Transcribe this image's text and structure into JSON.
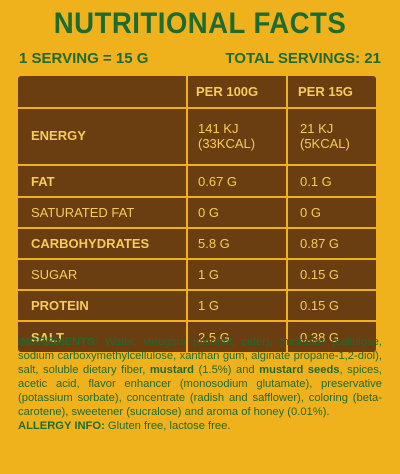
{
  "title": "NUTRITIONAL FACTS",
  "serving": {
    "size": "1 SERVING = 15 G",
    "total": "TOTAL SERVINGS: 21"
  },
  "table": {
    "headers": [
      "PER 100G",
      "PER 15G"
    ],
    "rows": [
      {
        "name": "ENERGY",
        "per100": "141 KJ (33KCAL)",
        "per15": "21 KJ (5KCAL)"
      },
      {
        "name": "FAT",
        "per100": "0.67 G",
        "per15": "0.1 G"
      },
      {
        "name": "SATURATED FAT",
        "per100": "0 G",
        "per15": "0 G"
      },
      {
        "name": "CARBOHYDRATES",
        "per100": "5.8 G",
        "per15": "0.87 G"
      },
      {
        "name": "SUGAR",
        "per100": "1 G",
        "per15": "0.15 G"
      },
      {
        "name": "PROTEIN",
        "per100": "1 G",
        "per15": "0.15 G"
      },
      {
        "name": "SALT",
        "per100": "2.5 G",
        "per15": "0.38 G"
      }
    ]
  },
  "ingredients": {
    "label": "INGREDIENTS:",
    "text_1": " Water, vinegars (alcohol, cider), thickener (cellulose, sodium carboxymethylcellulose, xanthan gum, alginate propane-1,2-diol), salt, soluble dietary fiber, ",
    "bold_1": "mustard",
    "text_2": " (1.5%) and ",
    "bold_2": "mustard seeds",
    "text_3": ", spices, acetic acid, flavor enhancer (monosodium glutamate), preservative (potassium sorbate), concentrate (radish and safflower), coloring (beta-carotene), sweetener (sucralose) and aroma of honey (0.01%)."
  },
  "allergy": {
    "label": "ALLERGY INFO:",
    "text": " Gluten free, lactose free."
  },
  "colors": {
    "background": "#f0b21c",
    "table": "#6b3e12",
    "text_green": "#1d6b2f",
    "table_text": "#f3cc59"
  }
}
